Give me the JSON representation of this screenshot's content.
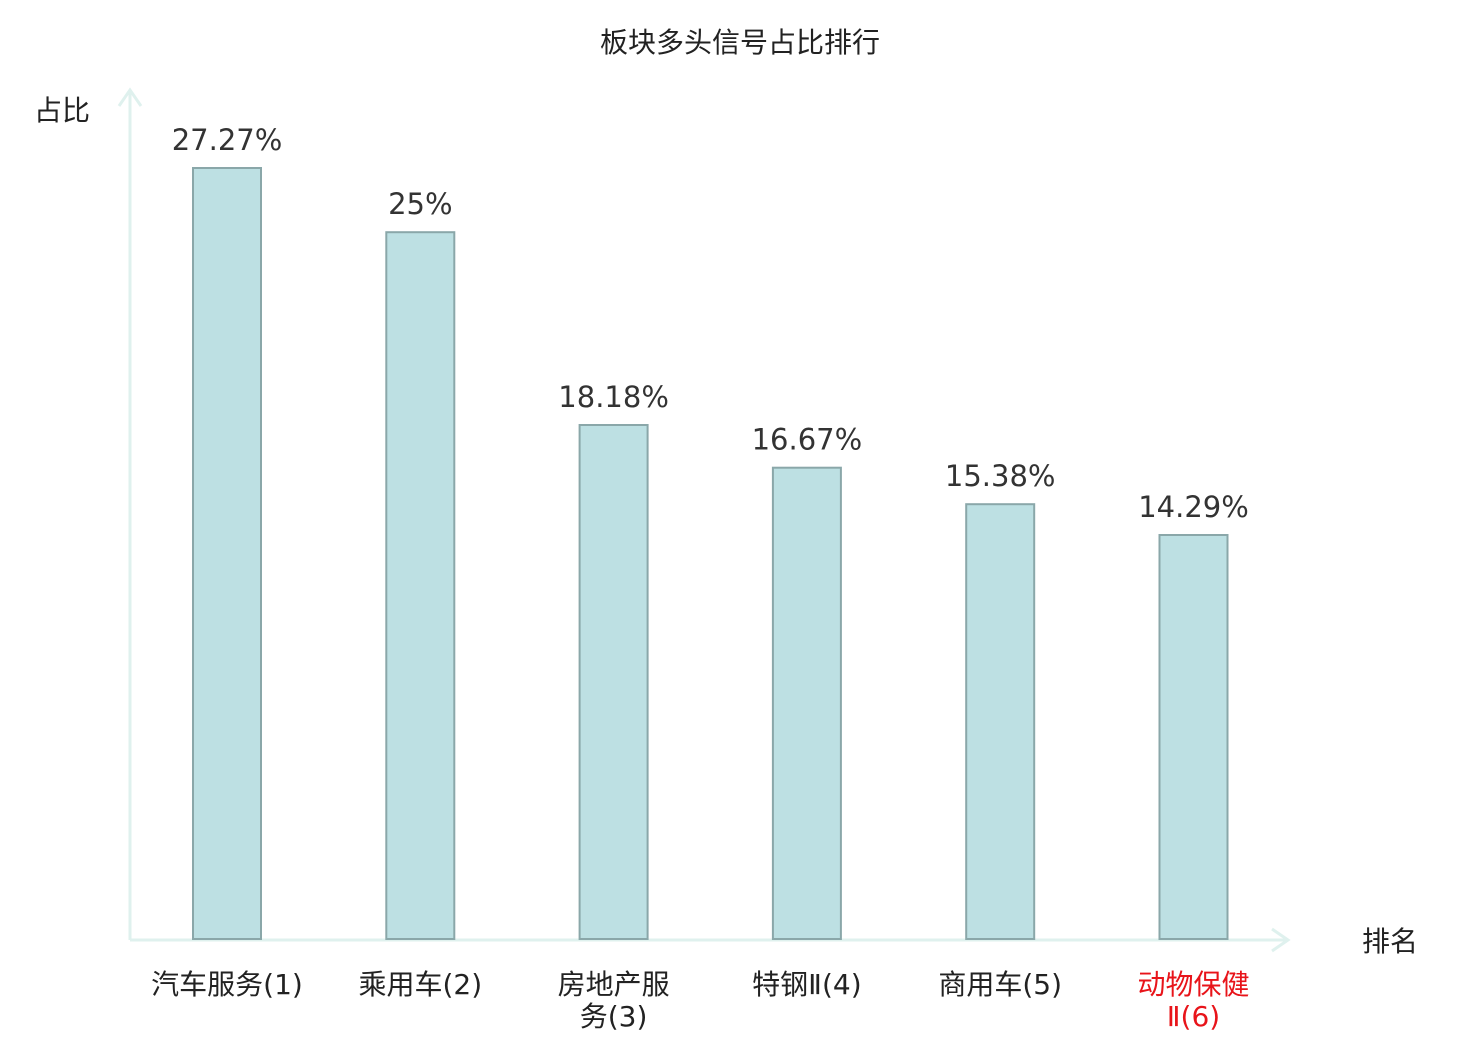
{
  "chart_data": {
    "type": "bar",
    "title": "板块多头信号占比排行",
    "ylabel": "占比",
    "xlabel": "排名",
    "ylim": [
      0,
      30
    ],
    "grid": false,
    "categories": [
      {
        "lines": [
          "汽车服务(1)"
        ],
        "highlight": false
      },
      {
        "lines": [
          "乘用车(2)"
        ],
        "highlight": false
      },
      {
        "lines": [
          "房地产服",
          "务(3)"
        ],
        "highlight": false
      },
      {
        "lines": [
          "特钢Ⅱ(4)"
        ],
        "highlight": false
      },
      {
        "lines": [
          "商用车(5)"
        ],
        "highlight": false
      },
      {
        "lines": [
          "动物保健",
          "Ⅱ(6)"
        ],
        "highlight": true
      }
    ],
    "values": [
      27.27,
      25,
      18.18,
      16.67,
      15.38,
      14.29
    ],
    "value_labels": [
      "27.27%",
      "25%",
      "18.18%",
      "16.67%",
      "15.38%",
      "14.29%"
    ]
  },
  "colors": {
    "bar_fill": "#bde0e3",
    "bar_stroke": "#8aa7a9",
    "axis": "#dff1ee",
    "text": "#222222",
    "highlight_text": "#e8141a"
  }
}
